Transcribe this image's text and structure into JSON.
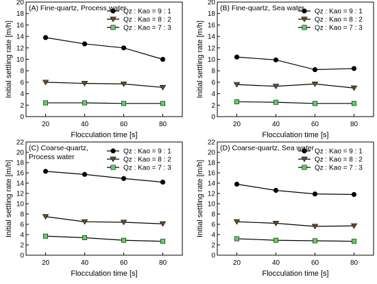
{
  "chart_data": [
    {
      "type": "line",
      "title": "(A) Fine-quartz, Process water",
      "xlabel": "Flocculation time [s]",
      "ylabel": "Initial settling rate [m/h]",
      "x": [
        20,
        40,
        60,
        80
      ],
      "xlim": [
        10,
        90
      ],
      "ylim": [
        0,
        20
      ],
      "yticks": [
        0,
        2,
        4,
        6,
        8,
        10,
        12,
        14,
        16,
        18,
        20
      ],
      "legend_position": "top-right",
      "series": [
        {
          "name": "Qz : Kao = 9 : 1",
          "marker": "circle",
          "values": [
            13.8,
            12.7,
            12.0,
            10.0
          ]
        },
        {
          "name": "Qz : Kao = 8 : 2",
          "marker": "triangle-down",
          "values": [
            6.0,
            5.8,
            5.7,
            5.1
          ]
        },
        {
          "name": "Qz : Kao = 7 : 3",
          "marker": "square",
          "values": [
            2.4,
            2.4,
            2.3,
            2.3
          ]
        }
      ]
    },
    {
      "type": "line",
      "title": "(B) Fine-quartz, Sea water",
      "xlabel": "Flocculation time [s]",
      "ylabel": "Initial settling rate [m/h]",
      "x": [
        20,
        40,
        60,
        80
      ],
      "xlim": [
        10,
        90
      ],
      "ylim": [
        0,
        20
      ],
      "yticks": [
        0,
        2,
        4,
        6,
        8,
        10,
        12,
        14,
        16,
        18,
        20
      ],
      "legend_position": "top-right",
      "series": [
        {
          "name": "Qz : Kao = 9 : 1",
          "marker": "circle",
          "values": [
            10.4,
            9.9,
            8.2,
            8.4
          ]
        },
        {
          "name": "Qz : Kao = 8 : 2",
          "marker": "triangle-down",
          "values": [
            5.6,
            5.3,
            5.7,
            5.0
          ]
        },
        {
          "name": "Qz : Kao = 7 : 3",
          "marker": "square",
          "values": [
            2.6,
            2.5,
            2.3,
            2.3
          ]
        }
      ]
    },
    {
      "type": "line",
      "title": "(C) Coarse-quartz,",
      "title_line2": "Process water",
      "xlabel": "Flocculation time [s]",
      "ylabel": "Initial settling rate [m/h]",
      "x": [
        20,
        40,
        60,
        80
      ],
      "xlim": [
        10,
        90
      ],
      "ylim": [
        0,
        22
      ],
      "yticks": [
        0,
        2,
        4,
        6,
        8,
        10,
        12,
        14,
        16,
        18,
        20,
        22
      ],
      "legend_position": "top-right",
      "series": [
        {
          "name": "Qz : Kao = 9 : 1",
          "marker": "circle",
          "values": [
            16.3,
            15.7,
            14.9,
            14.2
          ]
        },
        {
          "name": "Qz : Kao = 8 : 2",
          "marker": "triangle-down",
          "values": [
            7.5,
            6.5,
            6.4,
            6.1
          ]
        },
        {
          "name": "Qz : Kao = 7 : 3",
          "marker": "square",
          "values": [
            3.7,
            3.4,
            2.9,
            2.7
          ]
        }
      ]
    },
    {
      "type": "line",
      "title": "(D) Coarse-quartz, Sea water",
      "xlabel": "Flocculation time [s]",
      "ylabel": "Initial settling rate [m/h]",
      "x": [
        20,
        40,
        60,
        80
      ],
      "xlim": [
        10,
        90
      ],
      "ylim": [
        0,
        22
      ],
      "yticks": [
        0,
        2,
        4,
        6,
        8,
        10,
        12,
        14,
        16,
        18,
        20,
        22
      ],
      "legend_position": "top-right",
      "series": [
        {
          "name": "Qz : Kao = 9 : 1",
          "marker": "circle",
          "values": [
            13.8,
            12.6,
            11.9,
            11.8
          ]
        },
        {
          "name": "Qz : Kao = 8 : 2",
          "marker": "triangle-down",
          "values": [
            6.5,
            6.2,
            5.6,
            5.7
          ]
        },
        {
          "name": "Qz : Kao = 7 : 3",
          "marker": "square",
          "values": [
            3.2,
            2.9,
            2.8,
            2.7
          ]
        }
      ]
    }
  ],
  "colors": {
    "axis": "#000000",
    "series_line": "#000000",
    "circle_fill": "#000000",
    "triangle_fill": "#6b4a2b",
    "square_fill": "#5fd45f"
  }
}
